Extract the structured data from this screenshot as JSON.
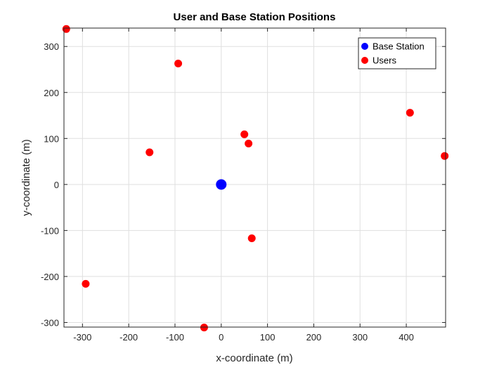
{
  "chart_data": {
    "type": "scatter",
    "title": "User and Base Station Positions",
    "xlabel": "x-coordinate (m)",
    "ylabel": "y-coordinate (m)",
    "xlim": [
      -340,
      485
    ],
    "ylim": [
      -310,
      340
    ],
    "xticks": [
      -300,
      -200,
      -100,
      0,
      100,
      200,
      300,
      400
    ],
    "yticks": [
      -300,
      -200,
      -100,
      0,
      100,
      200,
      300
    ],
    "grid": true,
    "legend_position": "top-right",
    "series": [
      {
        "name": "Base Station",
        "color": "#0000ff",
        "marker": "circle",
        "points": [
          {
            "x": 0,
            "y": 0
          }
        ]
      },
      {
        "name": "Users",
        "color": "#ff0000",
        "marker": "circle",
        "points": [
          {
            "x": -335,
            "y": 338
          },
          {
            "x": -93,
            "y": 263
          },
          {
            "x": -155,
            "y": 70
          },
          {
            "x": 50,
            "y": 109
          },
          {
            "x": 59,
            "y": 89
          },
          {
            "x": 408,
            "y": 156
          },
          {
            "x": 483,
            "y": 62
          },
          {
            "x": 66,
            "y": -117
          },
          {
            "x": -293,
            "y": -216
          },
          {
            "x": -37,
            "y": -311
          }
        ]
      }
    ]
  }
}
